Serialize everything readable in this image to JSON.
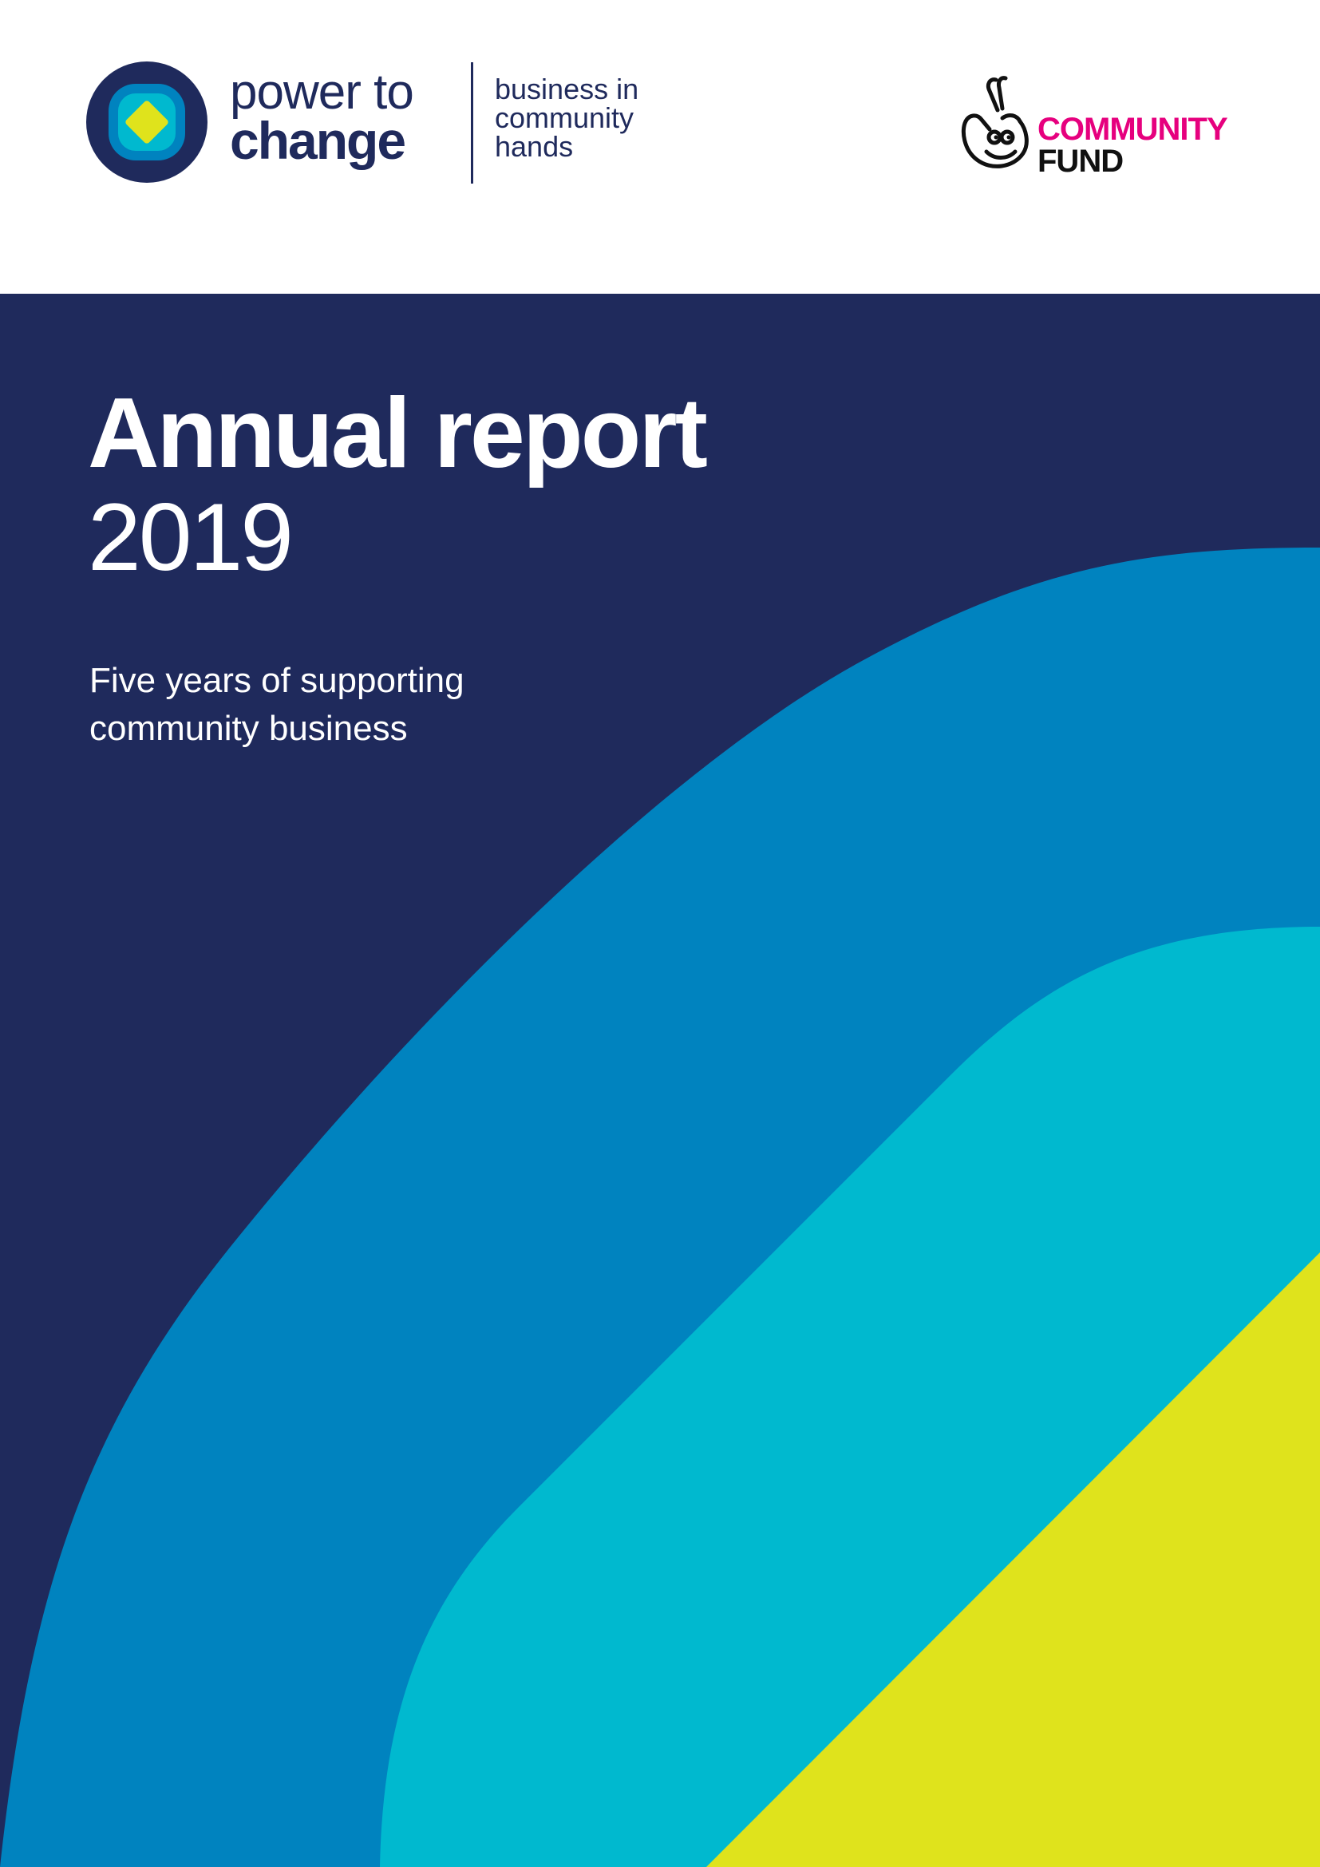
{
  "header": {
    "ptc_logo": {
      "name_line1": "power to",
      "name_line2": "change",
      "tagline_line1": "business in",
      "tagline_line2": "community",
      "tagline_line3": "hands",
      "icon": "concentric-rounded-squares-logo-icon"
    },
    "community_fund_logo": {
      "line1": "COMMUNITY",
      "line2": "FUND",
      "icon": "crossed-fingers-logo-icon"
    }
  },
  "cover": {
    "title": "Annual report",
    "year": "2019",
    "subtitle_line1": "Five years of supporting",
    "subtitle_line2": "community business"
  },
  "colors": {
    "navy": "#1f2a5c",
    "blue": "#0083bf",
    "cyan": "#00b9cf",
    "yellow": "#dfe31c",
    "pink": "#e6007e",
    "white": "#ffffff"
  }
}
